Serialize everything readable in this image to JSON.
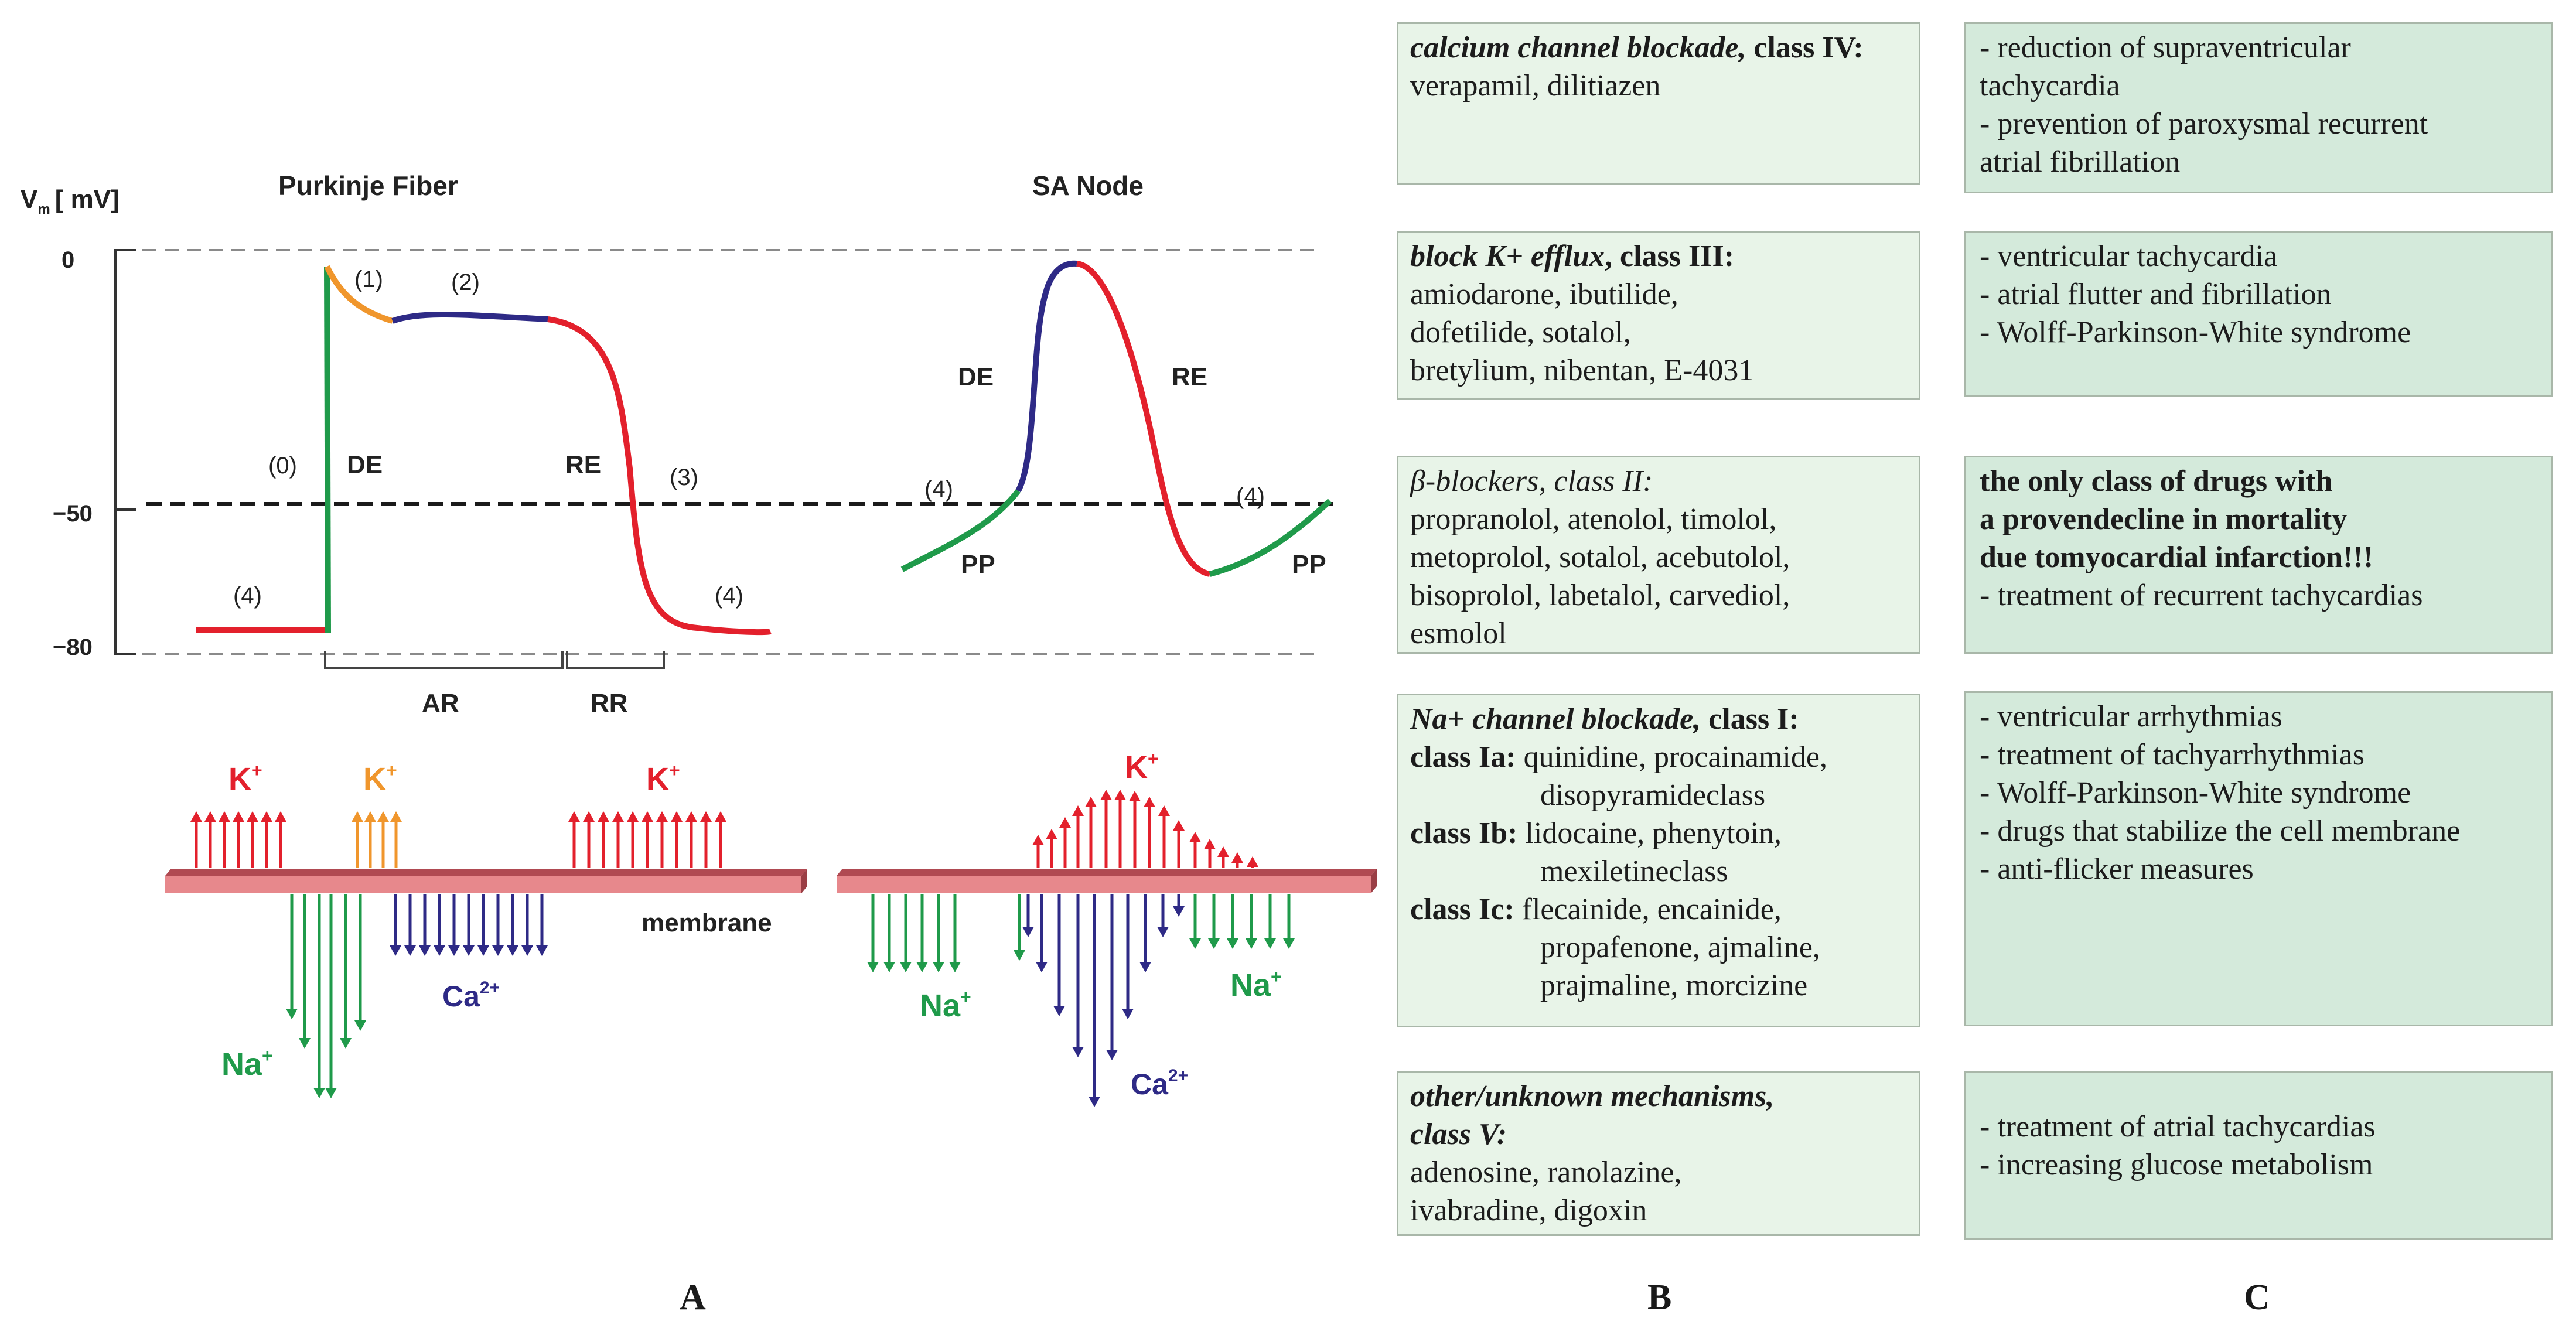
{
  "panel_labels": {
    "a": "A",
    "b": "B",
    "c": "C"
  },
  "diagram": {
    "y_axis_label": "V",
    "y_axis_sub": "m",
    "y_axis_unit": "[ mV]",
    "y_ticks": [
      "0",
      "−50",
      "−80"
    ],
    "purkinje": {
      "title": "Purkinje Fiber",
      "phase_labels": [
        "(0)",
        "(1)",
        "(2)",
        "(3)",
        "(4)",
        "(4)"
      ],
      "de": "DE",
      "re": "RE",
      "ar": "AR",
      "rr": "RR"
    },
    "sa_node": {
      "title": "SA Node",
      "de": "DE",
      "re": "RE",
      "pp": "PP",
      "phase4": "(4)"
    },
    "ions": {
      "k": "K",
      "na": "Na",
      "ca": "Ca",
      "plus": "+",
      "two_plus": "2+",
      "membrane": "membrane"
    },
    "colors": {
      "green": "#1f9a4a",
      "red": "#e3202c",
      "orange": "#f0962c",
      "navy": "#2e2a86",
      "membrane": "#e7888c"
    }
  },
  "classes": [
    {
      "title": "calcium channel blockade,",
      "class_label": "class IV:",
      "lines": [
        "verapamil, dilitiazen"
      ],
      "effects": [
        "- reduction of supraventricular",
        "tachycardia",
        "- prevention of paroxysmal recurrent",
        "atrial fibrillation"
      ]
    },
    {
      "title": "block K+ efflux",
      "class_label": ", class III:",
      "lines": [
        "amiodarone, ibutilide,",
        "dofetilide, sotalol,",
        "bretylium, nibentan, E-4031"
      ],
      "effects": [
        "- ventricular tachycardia",
        "- atrial flutter and fibrillation",
        "- Wolff-Parkinson-White syndrome"
      ]
    },
    {
      "title": "β-blockers, class II:",
      "lines": [
        "propranolol, atenolol, timolol,",
        "metoprolol, sotalol, acebutolol,",
        "bisoprolol, labetalol, carvediol,",
        "esmolol"
      ],
      "effects_bold": [
        "the only class of drugs with",
        "a provendecline in mortality",
        "due tomyocardial infarction!!!"
      ],
      "effects": [
        "- treatment of recurrent tachycardias"
      ]
    },
    {
      "title": "Na+ channel blockade,",
      "class_label": "class I:",
      "subclasses": [
        {
          "label": "class Ia:",
          "lines": [
            "quinidine, procainamide,",
            "disopyramideclass"
          ]
        },
        {
          "label": "class Ib:",
          "lines": [
            "lidocaine, phenytoin,",
            "mexiletineclass"
          ]
        },
        {
          "label": "class Ic:",
          "lines": [
            "flecainide, encainide,",
            "propafenone, ajmaline,",
            "prajmaline, morcizine"
          ]
        }
      ],
      "effects": [
        "- ventricular arrhythmias",
        "- treatment of tachyarrhythmias",
        "- Wolff-Parkinson-White syndrome",
        "- drugs that stabilize the cell membrane",
        "- anti-flicker measures"
      ]
    },
    {
      "title": "other/unknown mechanisms,",
      "title2": "class V:",
      "lines": [
        "adenosine, ranolazine,",
        "ivabradine, digoxin"
      ],
      "effects": [
        "- treatment of atrial tachycardias",
        "- increasing glucose metabolism"
      ]
    }
  ]
}
